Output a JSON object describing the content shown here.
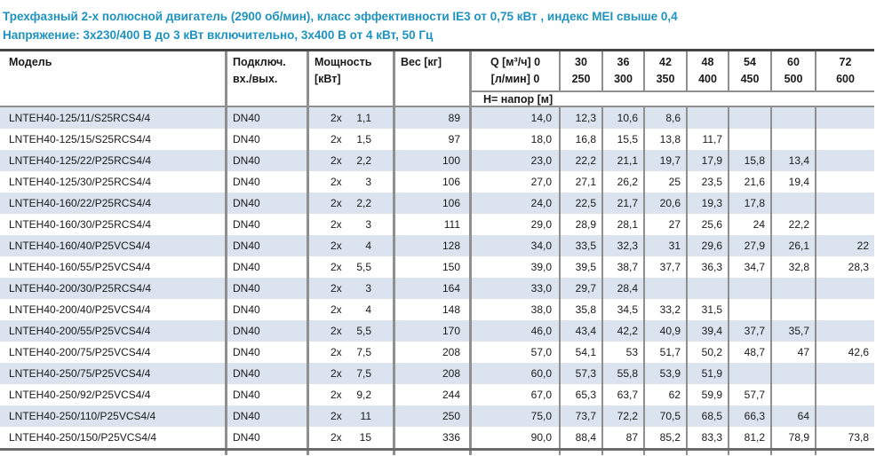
{
  "title": {
    "line1": "Трехфазный 2-х полюсной двигатель (2900 об/мин), класс эффективности IE3 от 0,75 кВт , индекс MEI свыше 0,4",
    "line2": "Напряжение: 3x230/400 В до 3 кВт включительно, 3x400 В от 4 кВт, 50 Гц"
  },
  "colors": {
    "accent_teal": "#1e93bf",
    "row_stripe": "#dbe3ee",
    "border_gray": "#8f8f8f",
    "border_dark": "#454545"
  },
  "table": {
    "headers": {
      "model": "Модель",
      "connection_l1": "Подключ.",
      "connection_l2": "вх./вых.",
      "power_l1": "Мощность",
      "power_l2": "[кВт]",
      "weight": "Вес [кг]",
      "q_l1": "Q [м³/ч] 0",
      "q_l2": "[л/мин] 0",
      "flow_cols": [
        {
          "m3h": "30",
          "lmin": "250"
        },
        {
          "m3h": "36",
          "lmin": "300"
        },
        {
          "m3h": "42",
          "lmin": "350"
        },
        {
          "m3h": "48",
          "lmin": "400"
        },
        {
          "m3h": "54",
          "lmin": "450"
        },
        {
          "m3h": "60",
          "lmin": "500"
        },
        {
          "m3h": "72",
          "lmin": "600"
        }
      ],
      "head_row": "Н= напор [м]"
    },
    "rows": [
      {
        "model": "LNTEH40-125/11/S25RCS4/4",
        "connection": "DN40",
        "power_prefix": "2x",
        "power": "1,1",
        "weight": "89",
        "q": [
          "14,0",
          "12,3",
          "10,6",
          "8,6",
          "",
          "",
          "",
          ""
        ]
      },
      {
        "model": "LNTEH40-125/15/S25RCS4/4",
        "connection": "DN40",
        "power_prefix": "2x",
        "power": "1,5",
        "weight": "97",
        "q": [
          "18,0",
          "16,8",
          "15,5",
          "13,8",
          "11,7",
          "",
          "",
          ""
        ]
      },
      {
        "model": "LNTEH40-125/22/P25RCS4/4",
        "connection": "DN40",
        "power_prefix": "2x",
        "power": "2,2",
        "weight": "100",
        "q": [
          "23,0",
          "22,2",
          "21,1",
          "19,7",
          "17,9",
          "15,8",
          "13,4",
          ""
        ]
      },
      {
        "model": "LNTEH40-125/30/P25RCS4/4",
        "connection": "DN40",
        "power_prefix": "2x",
        "power": "3",
        "weight": "106",
        "q": [
          "27,0",
          "27,1",
          "26,2",
          "25",
          "23,5",
          "21,6",
          "19,4",
          ""
        ]
      },
      {
        "model": "LNTEH40-160/22/P25RCS4/4",
        "connection": "DN40",
        "power_prefix": "2x",
        "power": "2,2",
        "weight": "106",
        "q": [
          "24,0",
          "22,5",
          "21,7",
          "20,6",
          "19,3",
          "17,8",
          "",
          ""
        ]
      },
      {
        "model": "LNTEH40-160/30/P25RCS4/4",
        "connection": "DN40",
        "power_prefix": "2x",
        "power": "3",
        "weight": "111",
        "q": [
          "29,0",
          "28,9",
          "28,1",
          "27",
          "25,6",
          "24",
          "22,2",
          ""
        ]
      },
      {
        "model": "LNTEH40-160/40/P25VCS4/4",
        "connection": "DN40",
        "power_prefix": "2x",
        "power": "4",
        "weight": "128",
        "q": [
          "34,0",
          "33,5",
          "32,3",
          "31",
          "29,6",
          "27,9",
          "26,1",
          "22"
        ]
      },
      {
        "model": "LNTEH40-160/55/P25VCS4/4",
        "connection": "DN40",
        "power_prefix": "2x",
        "power": "5,5",
        "weight": "150",
        "q": [
          "39,0",
          "39,5",
          "38,7",
          "37,7",
          "36,3",
          "34,7",
          "32,8",
          "28,3"
        ]
      },
      {
        "model": "LNTEH40-200/30/P25RCS4/4",
        "connection": "DN40",
        "power_prefix": "2x",
        "power": "3",
        "weight": "164",
        "q": [
          "33,0",
          "29,7",
          "28,4",
          "",
          "",
          "",
          "",
          ""
        ]
      },
      {
        "model": "LNTEH40-200/40/P25VCS4/4",
        "connection": "DN40",
        "power_prefix": "2x",
        "power": "4",
        "weight": "148",
        "q": [
          "38,0",
          "35,8",
          "34,5",
          "33,2",
          "31,5",
          "",
          "",
          ""
        ]
      },
      {
        "model": "LNTEH40-200/55/P25VCS4/4",
        "connection": "DN40",
        "power_prefix": "2x",
        "power": "5,5",
        "weight": "170",
        "q": [
          "46,0",
          "43,4",
          "42,2",
          "40,9",
          "39,4",
          "37,7",
          "35,7",
          ""
        ]
      },
      {
        "model": "LNTEH40-200/75/P25VCS4/4",
        "connection": "DN40",
        "power_prefix": "2x",
        "power": "7,5",
        "weight": "208",
        "q": [
          "57,0",
          "54,1",
          "53",
          "51,7",
          "50,2",
          "48,7",
          "47",
          "42,6"
        ]
      },
      {
        "model": "LNTEH40-250/75/P25VCS4/4",
        "connection": "DN40",
        "power_prefix": "2x",
        "power": "7,5",
        "weight": "208",
        "q": [
          "60,0",
          "57,3",
          "55,8",
          "53,9",
          "51,9",
          "",
          "",
          ""
        ]
      },
      {
        "model": "LNTEH40-250/92/P25VCS4/4",
        "connection": "DN40",
        "power_prefix": "2x",
        "power": "9,2",
        "weight": "244",
        "q": [
          "67,0",
          "65,3",
          "63,7",
          "62",
          "59,9",
          "57,7",
          "",
          ""
        ]
      },
      {
        "model": "LNTEH40-250/110/P25VCS4/4",
        "connection": "DN40",
        "power_prefix": "2x",
        "power": "11",
        "weight": "250",
        "q": [
          "75,0",
          "73,7",
          "72,2",
          "70,5",
          "68,5",
          "66,3",
          "64",
          ""
        ]
      },
      {
        "model": "LNTEH40-250/150/P25VCS4/4",
        "connection": "DN40",
        "power_prefix": "2x",
        "power": "15",
        "weight": "336",
        "q": [
          "90,0",
          "88,4",
          "87",
          "85,2",
          "83,3",
          "81,2",
          "78,9",
          "73,8"
        ]
      }
    ]
  }
}
